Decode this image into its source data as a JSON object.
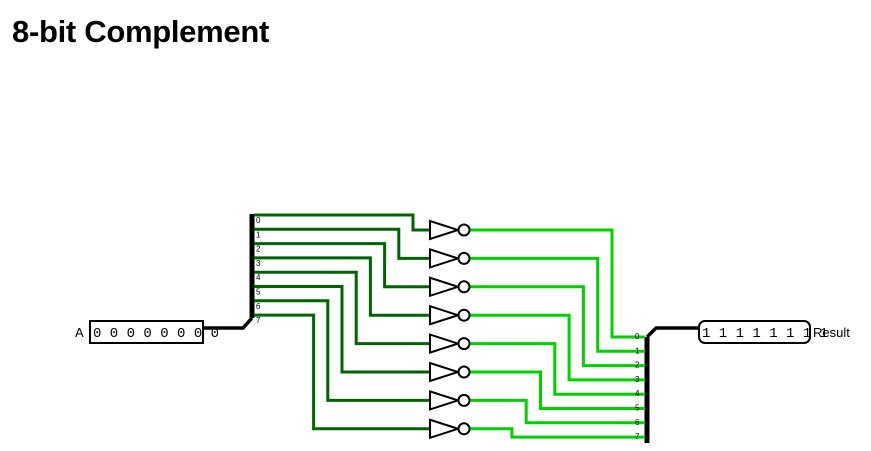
{
  "title": "8-bit Complement",
  "input_pin": {
    "label": "A",
    "bits": "0 0 0 0 0 0 0 0"
  },
  "output_pin": {
    "label": "Result",
    "bits": "1 1 1 1 1 1 1 1"
  },
  "input_splitter": {
    "indices": [
      "0",
      "1",
      "2",
      "3",
      "4",
      "5",
      "6",
      "7"
    ]
  },
  "output_splitter": {
    "indices": [
      "0",
      "1",
      "2",
      "3",
      "4",
      "5",
      "6",
      "7"
    ]
  },
  "gates": {
    "count": 8,
    "type": "NOT"
  },
  "colors": {
    "wire_low": "#006400",
    "wire_high": "#00d200",
    "bus": "#000000"
  }
}
